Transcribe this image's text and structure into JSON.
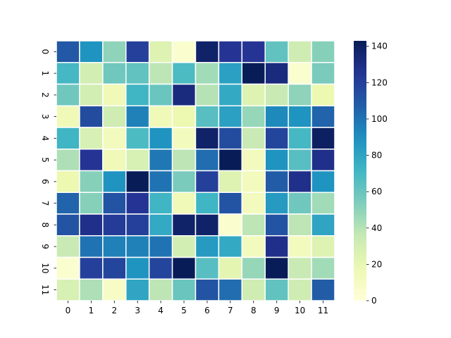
{
  "chart_data": {
    "type": "heatmap",
    "title": "",
    "xlabel": "",
    "ylabel": "",
    "x_categories": [
      "0",
      "1",
      "2",
      "3",
      "4",
      "5",
      "6",
      "7",
      "8",
      "9",
      "10",
      "11"
    ],
    "y_categories": [
      "0",
      "1",
      "2",
      "3",
      "4",
      "5",
      "6",
      "7",
      "8",
      "9",
      "10",
      "11"
    ],
    "values": [
      [
        110,
        88,
        50,
        120,
        25,
        5,
        138,
        125,
        125,
        62,
        32,
        52
      ],
      [
        70,
        30,
        58,
        62,
        38,
        68,
        45,
        82,
        145,
        132,
        5,
        55
      ],
      [
        58,
        30,
        15,
        72,
        60,
        132,
        40,
        78,
        25,
        35,
        50,
        18
      ],
      [
        15,
        115,
        32,
        95,
        15,
        18,
        65,
        82,
        48,
        92,
        88,
        105
      ],
      [
        72,
        28,
        12,
        68,
        88,
        12,
        138,
        115,
        35,
        118,
        70,
        140
      ],
      [
        42,
        125,
        15,
        28,
        98,
        38,
        102,
        145,
        12,
        88,
        65,
        128
      ],
      [
        18,
        52,
        88,
        145,
        100,
        55,
        120,
        25,
        12,
        108,
        128,
        88
      ],
      [
        105,
        52,
        112,
        125,
        72,
        15,
        72,
        112,
        12,
        85,
        58,
        45
      ],
      [
        112,
        128,
        122,
        120,
        78,
        138,
        138,
        5,
        38,
        112,
        38,
        80
      ],
      [
        35,
        100,
        95,
        95,
        100,
        30,
        85,
        78,
        12,
        128,
        12,
        25
      ],
      [
        5,
        120,
        118,
        88,
        118,
        148,
        65,
        22,
        48,
        150,
        35,
        45
      ],
      [
        28,
        42,
        8,
        80,
        38,
        60,
        112,
        102,
        32,
        62,
        32,
        108
      ]
    ],
    "vmin": 0,
    "vmax": 143,
    "colormap": "YlGnBu",
    "colorbar_ticks": [
      0,
      20,
      40,
      60,
      80,
      100,
      120,
      140
    ],
    "grid": false,
    "cell_borders": true,
    "colorbar": "right"
  }
}
